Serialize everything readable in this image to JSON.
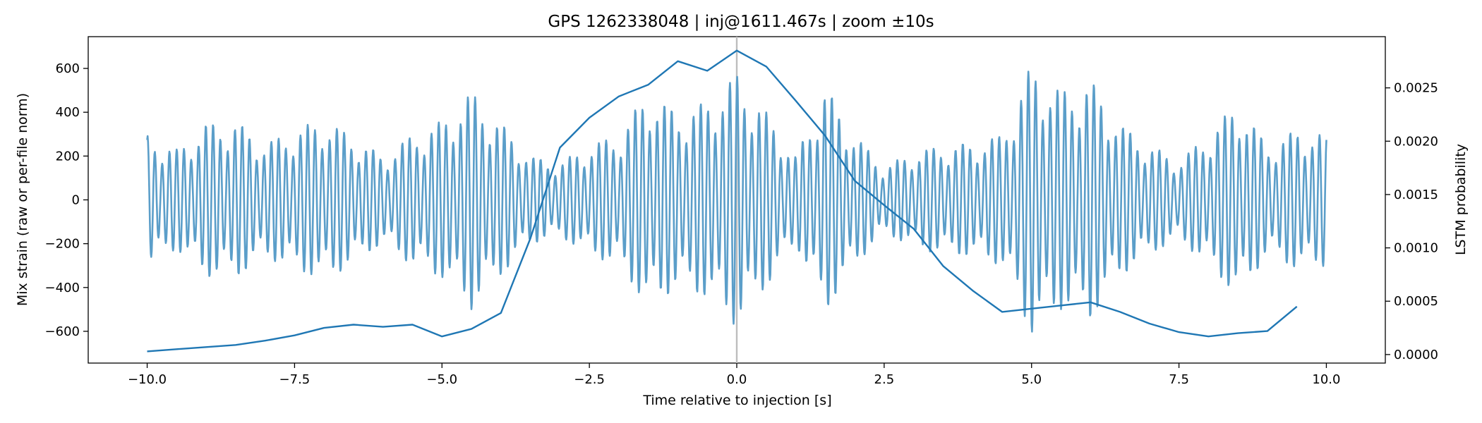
{
  "chart_data": {
    "type": "line",
    "title": "GPS 1262338048 | inj@1611.467s | zoom ±10s",
    "xlabel": "Time relative to injection [s]",
    "ylabel_left": "Mix strain (raw or per-file norm)",
    "ylabel_right": "LSTM probability",
    "xlim": [
      -11,
      11
    ],
    "ylim_left": [
      -745,
      745
    ],
    "ylim_right": [
      -8e-05,
      0.00298
    ],
    "x_ticks": [
      -10.0,
      -7.5,
      -5.0,
      -2.5,
      0.0,
      2.5,
      5.0,
      7.5,
      10.0
    ],
    "x_tick_labels": [
      "−10.0",
      "−7.5",
      "−5.0",
      "−2.5",
      "0.0",
      "2.5",
      "5.0",
      "7.5",
      "10.0"
    ],
    "y_left_ticks": [
      -600,
      -400,
      -200,
      0,
      200,
      400,
      600
    ],
    "y_left_tick_labels": [
      "−600",
      "−400",
      "−200",
      "0",
      "200",
      "400",
      "600"
    ],
    "y_right_ticks": [
      0.0,
      0.0005,
      0.001,
      0.0015,
      0.002,
      0.0025
    ],
    "y_right_tick_labels": [
      "0.0000",
      "0.0005",
      "0.0010",
      "0.0015",
      "0.0020",
      "0.0025"
    ],
    "injection_marker_x": 0.0,
    "grid": false,
    "series": [
      {
        "axis": "left",
        "color": "#5b9ec9",
        "x_start": -10.0,
        "x_end": 10.0,
        "envelope_x": [
          -10,
          -9.5,
          -9,
          -8.5,
          -8,
          -7.5,
          -7,
          -6.5,
          -6,
          -5.5,
          -5,
          -4.5,
          -4,
          -3.5,
          -3,
          -2.5,
          -2,
          -1.5,
          -1,
          -0.5,
          0,
          0.5,
          1,
          1.5,
          2,
          2.5,
          3,
          3.5,
          4,
          4.5,
          5,
          5.5,
          6,
          6.5,
          7,
          7.5,
          8,
          8.5,
          9,
          9.5,
          10
        ],
        "envelope_amp": [
          300,
          230,
          350,
          360,
          260,
          320,
          370,
          290,
          200,
          300,
          360,
          500,
          350,
          200,
          170,
          250,
          300,
          500,
          400,
          450,
          580,
          400,
          200,
          520,
          300,
          150,
          220,
          250,
          260,
          300,
          620,
          500,
          550,
          350,
          250,
          180,
          300,
          450,
          250,
          320,
          300
        ]
      },
      {
        "axis": "right",
        "color": "#1f77b4",
        "x": [
          -10,
          -9.5,
          -9,
          -8.5,
          -8,
          -7.5,
          -7,
          -6.5,
          -6,
          -5.5,
          -5,
          -4.5,
          -4,
          -3.5,
          -3,
          -2.5,
          -2,
          -1.5,
          -1,
          -0.5,
          0,
          0.5,
          1,
          1.5,
          2,
          2.5,
          3,
          3.5,
          4,
          4.5,
          5,
          5.5,
          6,
          6.5,
          7,
          7.5,
          8,
          8.5,
          9,
          9.5
        ],
        "y": [
          3e-05,
          5e-05,
          7e-05,
          9e-05,
          0.00013,
          0.00018,
          0.00025,
          0.00028,
          0.00026,
          0.00028,
          0.00017,
          0.00024,
          0.00039,
          0.00109,
          0.00194,
          0.00222,
          0.00242,
          0.00253,
          0.00275,
          0.00266,
          0.00285,
          0.0027,
          0.00238,
          0.00205,
          0.00163,
          0.0014,
          0.00118,
          0.00083,
          0.0006,
          0.0004,
          0.00043,
          0.00046,
          0.00049,
          0.0004,
          0.00029,
          0.00021,
          0.00017,
          0.0002,
          0.00022,
          0.00045
        ]
      }
    ]
  }
}
